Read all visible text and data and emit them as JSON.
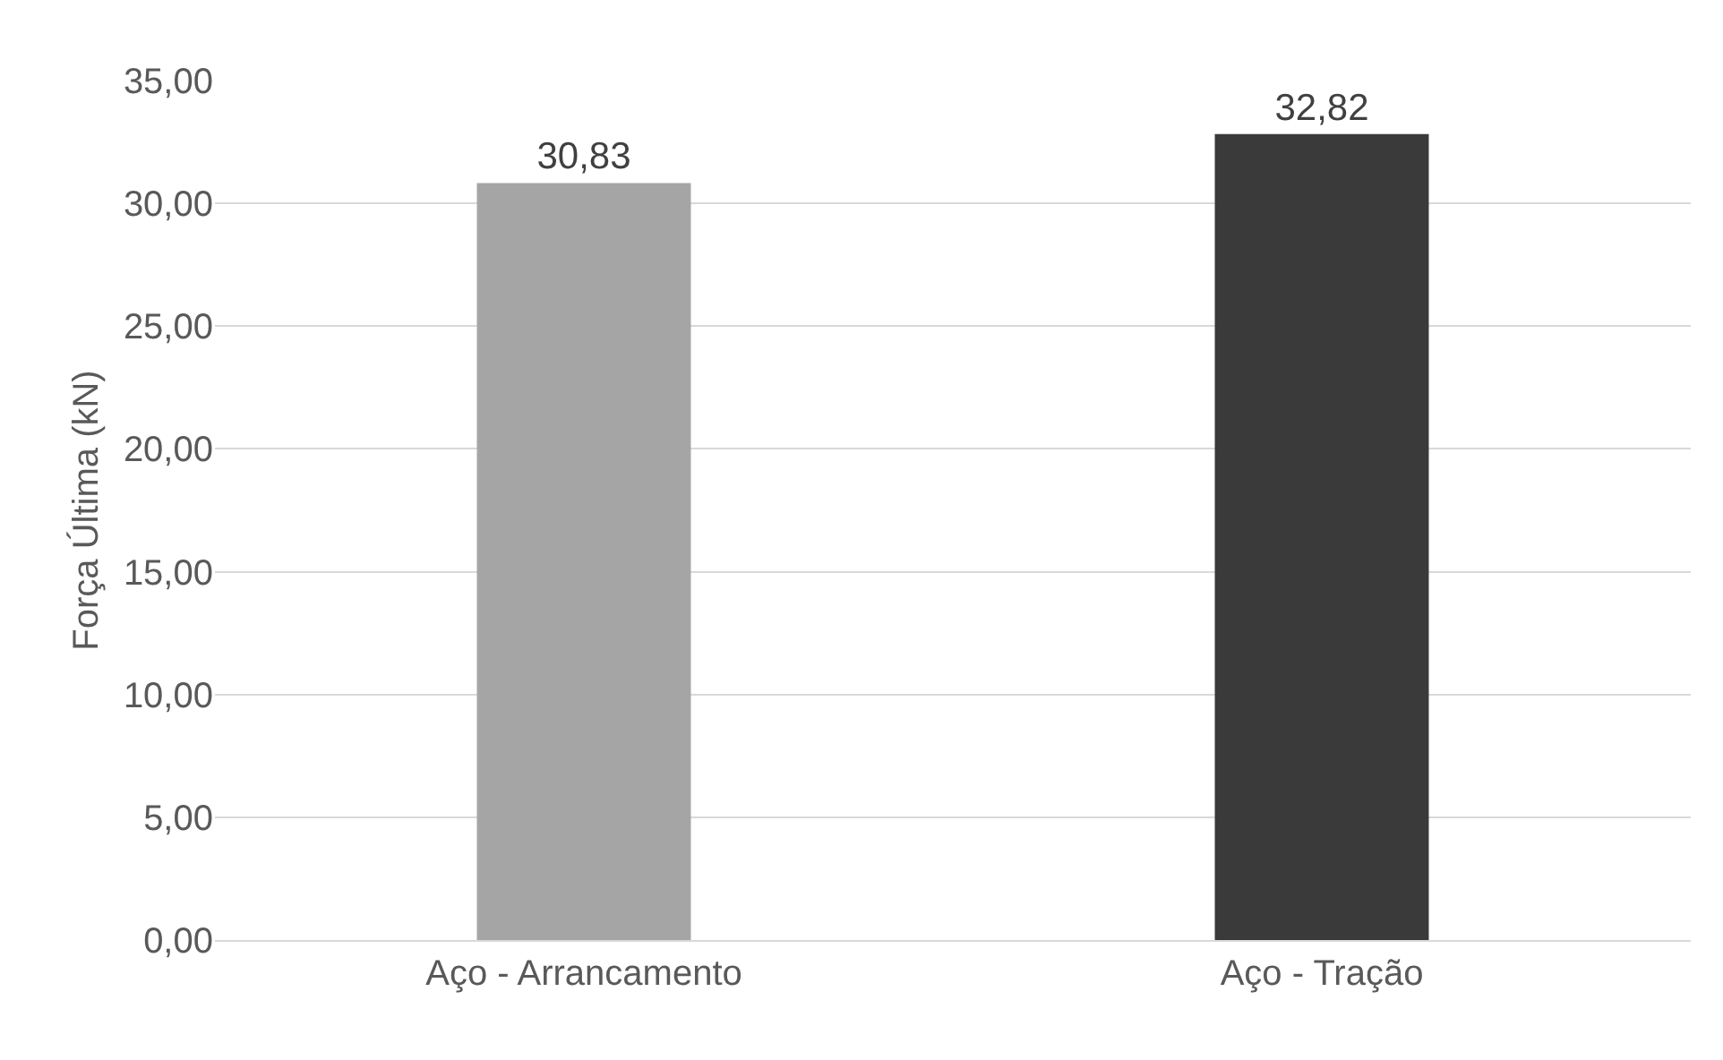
{
  "chart_data": {
    "type": "bar",
    "ylabel": "Força Última (kN)",
    "categories": [
      "Aço - Arrancamento",
      "Aço - Tração"
    ],
    "values": [
      30.83,
      32.82
    ],
    "colors": [
      "#a5a5a5",
      "#3a3a3a"
    ],
    "value_labels": [
      "30,83",
      "32,82"
    ],
    "ylim": [
      0,
      35
    ],
    "yticks": [
      {
        "value": 0,
        "label": "0,00"
      },
      {
        "value": 5,
        "label": "5,00"
      },
      {
        "value": 10,
        "label": "10,00"
      },
      {
        "value": 15,
        "label": "15,00"
      },
      {
        "value": 20,
        "label": "20,00"
      },
      {
        "value": 25,
        "label": "25,00"
      },
      {
        "value": 30,
        "label": "30,00"
      },
      {
        "value": 35,
        "label": "35,00"
      }
    ],
    "grid": "y",
    "legend": false
  }
}
